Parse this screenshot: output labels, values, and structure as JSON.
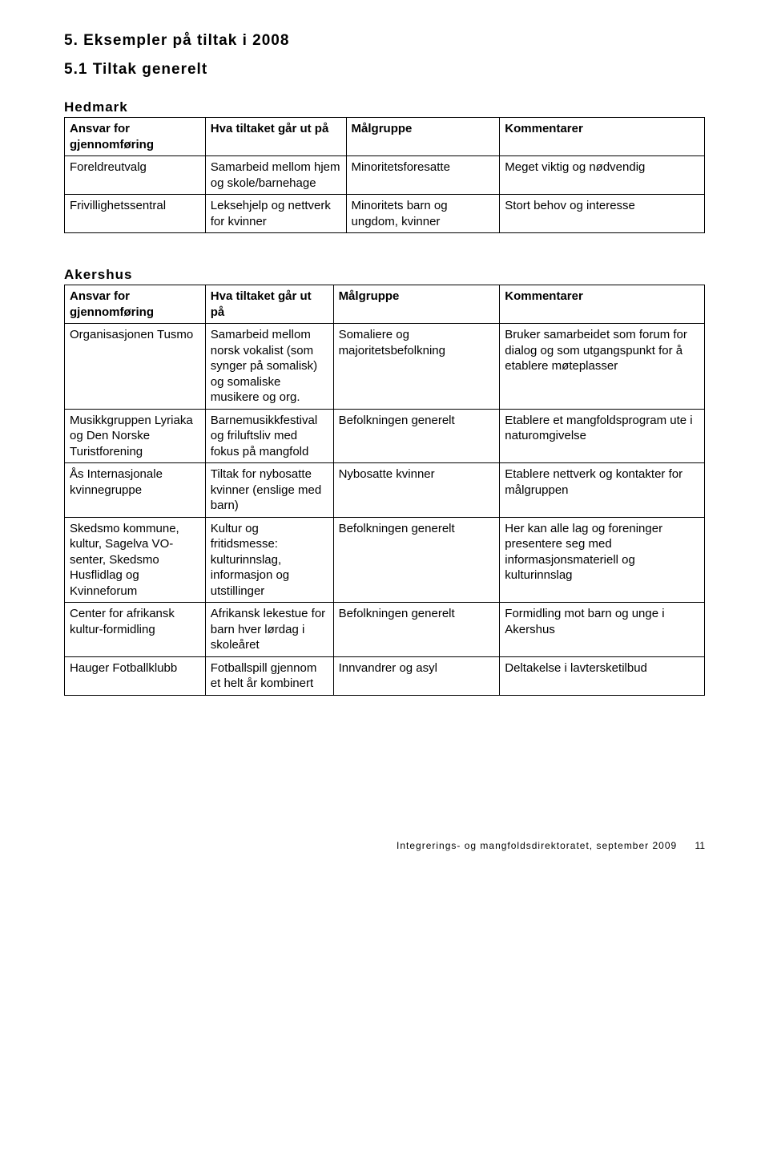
{
  "headings": {
    "section": "5. Eksempler på tiltak i 2008",
    "subsection": "5.1 Tiltak generelt"
  },
  "table_headers": {
    "col1": "Ansvar for gjennomføring",
    "col2": "Hva tiltaket går ut på",
    "col3": "Målgruppe",
    "col4": "Kommentarer"
  },
  "hedmark": {
    "title": "Hedmark",
    "rows": [
      {
        "c1": "Foreldreutvalg",
        "c2": "Samarbeid mellom hjem og skole/barnehage",
        "c3": "Minoritetsforesatte",
        "c4": "Meget viktig og nødvendig"
      },
      {
        "c1": "Frivillighetssentral",
        "c2": "Leksehjelp og nettverk for kvinner",
        "c3": "Minoritets barn og ungdom, kvinner",
        "c4": "Stort behov og interesse"
      }
    ]
  },
  "akershus": {
    "title": "Akershus",
    "rows": [
      {
        "c1": "Organisasjonen Tusmo",
        "c2": "Samarbeid mellom norsk vokalist (som synger på somalisk) og somaliske musikere og org.",
        "c3": "Somaliere og majoritetsbefolkning",
        "c4": "Bruker samarbeidet som forum for dialog og som utgangspunkt for å etablere møteplasser"
      },
      {
        "c1": "Musikkgruppen Lyriaka og Den Norske Turistforening",
        "c2": "Barnemusikkfestival og friluftsliv med fokus på mangfold",
        "c3": "Befolkningen generelt",
        "c4": "Etablere et mangfoldsprogram ute i naturomgivelse"
      },
      {
        "c1": "Ås Internasjonale kvinnegruppe",
        "c2": "Tiltak for nybosatte kvinner (enslige med barn)",
        "c3": "Nybosatte kvinner",
        "c4": "Etablere nettverk og kontakter for målgruppen"
      },
      {
        "c1": "Skedsmo kommune, kultur, Sagelva VO-senter, Skedsmo Husflidlag og Kvinneforum",
        "c2": "Kultur og fritidsmesse: kulturinnslag, informasjon og utstillinger",
        "c3": "Befolkningen generelt",
        "c4": "Her kan alle lag og foreninger presentere seg med informasjonsmateriell og kulturinnslag"
      },
      {
        "c1": "Center for afrikansk kultur-formidling",
        "c2": "Afrikansk lekestue for barn hver lørdag i skoleåret",
        "c3": "Befolkningen generelt",
        "c4": "Formidling mot barn og unge i Akershus"
      },
      {
        "c1": "Hauger Fotballklubb",
        "c2": "Fotballspill gjennom et helt år kombinert",
        "c3": "Innvandrer og asyl",
        "c4": "Deltakelse i lavtersketilbud"
      }
    ]
  },
  "footer": {
    "text": "Integrerings- og mangfoldsdirektoratet, september 2009",
    "page": "11"
  }
}
